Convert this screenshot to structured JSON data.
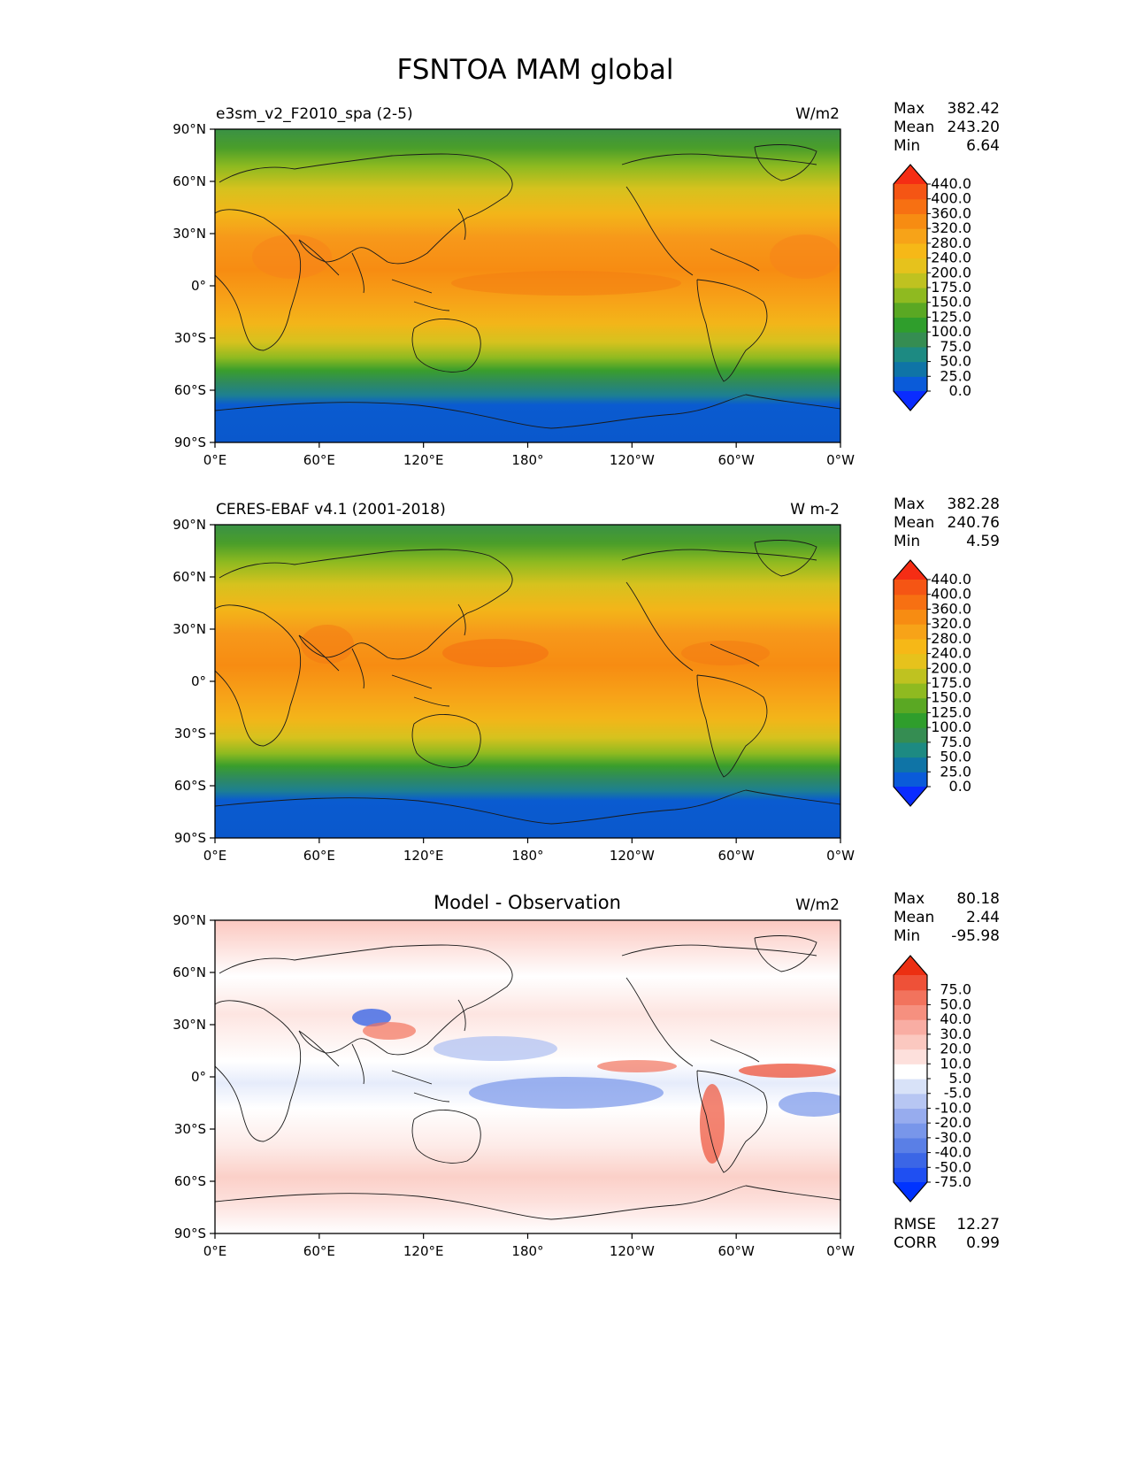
{
  "figure": {
    "title": "FSNTOA MAM global"
  },
  "chart_data": [
    {
      "type": "heatmap",
      "left_title": "e3sm_v2_F2010_spa (2-5)",
      "center_title": "",
      "units": "W/m2",
      "stats": {
        "max": "382.42",
        "mean": "243.20",
        "min": "6.64"
      },
      "field": "absolute",
      "colorbar": {
        "colors": [
          "#0a2cff",
          "#0a5bd9",
          "#0f74a6",
          "#1d8a82",
          "#358d52",
          "#2f9e2c",
          "#5aa823",
          "#8fba20",
          "#bfc220",
          "#e6c21c",
          "#f6b817",
          "#f7a318",
          "#f78c12",
          "#f77012",
          "#f55514",
          "#f52d14"
        ],
        "labels": [
          "0.0",
          "25.0",
          "50.0",
          "75.0",
          "100.0",
          "125.0",
          "150.0",
          "175.0",
          "200.0",
          "240.0",
          "280.0",
          "320.0",
          "360.0",
          "400.0",
          "440.0"
        ]
      },
      "xticks": [
        "0°E",
        "60°E",
        "120°E",
        "180°",
        "120°W",
        "60°W",
        "0°W"
      ],
      "yticks": [
        "90°N",
        "60°N",
        "30°N",
        "0°",
        "30°S",
        "60°S",
        "90°S"
      ],
      "xlim": [
        0,
        360
      ],
      "ylim": [
        -90,
        90
      ]
    },
    {
      "type": "heatmap",
      "left_title": "CERES-EBAF v4.1 (2001-2018)",
      "center_title": "",
      "units": "W m-2",
      "stats": {
        "max": "382.28",
        "mean": "240.76",
        "min": "4.59"
      },
      "field": "absolute",
      "colorbar": {
        "colors": [
          "#0a2cff",
          "#0a5bd9",
          "#0f74a6",
          "#1d8a82",
          "#358d52",
          "#2f9e2c",
          "#5aa823",
          "#8fba20",
          "#bfc220",
          "#e6c21c",
          "#f6b817",
          "#f7a318",
          "#f78c12",
          "#f77012",
          "#f55514",
          "#f52d14"
        ],
        "labels": [
          "0.0",
          "25.0",
          "50.0",
          "75.0",
          "100.0",
          "125.0",
          "150.0",
          "175.0",
          "200.0",
          "240.0",
          "280.0",
          "320.0",
          "360.0",
          "400.0",
          "440.0"
        ]
      },
      "xticks": [
        "0°E",
        "60°E",
        "120°E",
        "180°",
        "120°W",
        "60°W",
        "0°W"
      ],
      "yticks": [
        "90°N",
        "60°N",
        "30°N",
        "0°",
        "30°S",
        "60°S",
        "90°S"
      ],
      "xlim": [
        0,
        360
      ],
      "ylim": [
        -90,
        90
      ]
    },
    {
      "type": "heatmap",
      "left_title": "",
      "center_title": "Model - Observation",
      "units": "W/m2",
      "stats": {
        "max": "80.18",
        "mean": "2.44",
        "min": "-95.98"
      },
      "extra_stats": {
        "rmse": "12.27",
        "corr": "0.99"
      },
      "field": "difference",
      "colorbar": {
        "colors": [
          "#0033ff",
          "#1f4ff2",
          "#3b66e6",
          "#5a7fe6",
          "#7896ea",
          "#97acee",
          "#b7c6f3",
          "#d8e2f8",
          "#ffffff",
          "#fde0dc",
          "#fbc8c0",
          "#f9ada3",
          "#f6907f",
          "#f2735d",
          "#ee5138",
          "#ec2f12"
        ],
        "labels": [
          "-75.0",
          "-50.0",
          "-40.0",
          "-30.0",
          "-20.0",
          "-10.0",
          "-5.0",
          "5.0",
          "10.0",
          "20.0",
          "30.0",
          "40.0",
          "50.0",
          "75.0"
        ]
      },
      "xticks": [
        "0°E",
        "60°E",
        "120°E",
        "180°",
        "120°W",
        "60°W",
        "0°W"
      ],
      "yticks": [
        "90°N",
        "60°N",
        "30°N",
        "0°",
        "30°S",
        "60°S",
        "90°S"
      ],
      "xlim": [
        0,
        360
      ],
      "ylim": [
        -90,
        90
      ]
    }
  ],
  "stat_labels": {
    "max": "Max",
    "mean": "Mean",
    "min": "Min",
    "rmse": "RMSE",
    "corr": "CORR"
  }
}
